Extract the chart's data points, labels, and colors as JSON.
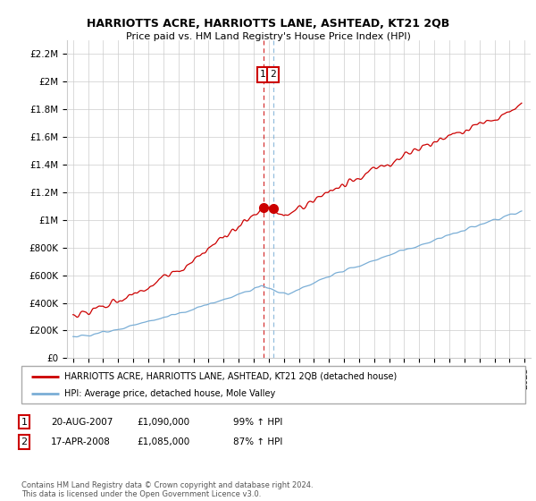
{
  "title": "HARRIOTTS ACRE, HARRIOTTS LANE, ASHTEAD, KT21 2QB",
  "subtitle": "Price paid vs. HM Land Registry's House Price Index (HPI)",
  "legend_line1": "HARRIOTTS ACRE, HARRIOTTS LANE, ASHTEAD, KT21 2QB (detached house)",
  "legend_line2": "HPI: Average price, detached house, Mole Valley",
  "red_color": "#cc0000",
  "blue_color": "#7aaed6",
  "annotation1_label": "1",
  "annotation1_date": "20-AUG-2007",
  "annotation1_price": "£1,090,000",
  "annotation1_hpi": "99% ↑ HPI",
  "annotation2_label": "2",
  "annotation2_date": "17-APR-2008",
  "annotation2_price": "£1,085,000",
  "annotation2_hpi": "87% ↑ HPI",
  "footer": "Contains HM Land Registry data © Crown copyright and database right 2024.\nThis data is licensed under the Open Government Licence v3.0.",
  "ylim": [
    0,
    2300000
  ],
  "yticks": [
    0,
    200000,
    400000,
    600000,
    800000,
    1000000,
    1200000,
    1400000,
    1600000,
    1800000,
    2000000,
    2200000
  ],
  "ytick_labels": [
    "£0",
    "£200K",
    "£400K",
    "£600K",
    "£800K",
    "£1M",
    "£1.2M",
    "£1.4M",
    "£1.6M",
    "£1.8M",
    "£2M",
    "£2.2M"
  ],
  "ann1_x": 2007.63,
  "ann1_y": 1090000,
  "ann2_x": 2008.29,
  "ann2_y": 1085000,
  "vline1_x": 2007.63,
  "vline2_x": 2008.29,
  "xlim_start": 1994.6,
  "xlim_end": 2025.4
}
